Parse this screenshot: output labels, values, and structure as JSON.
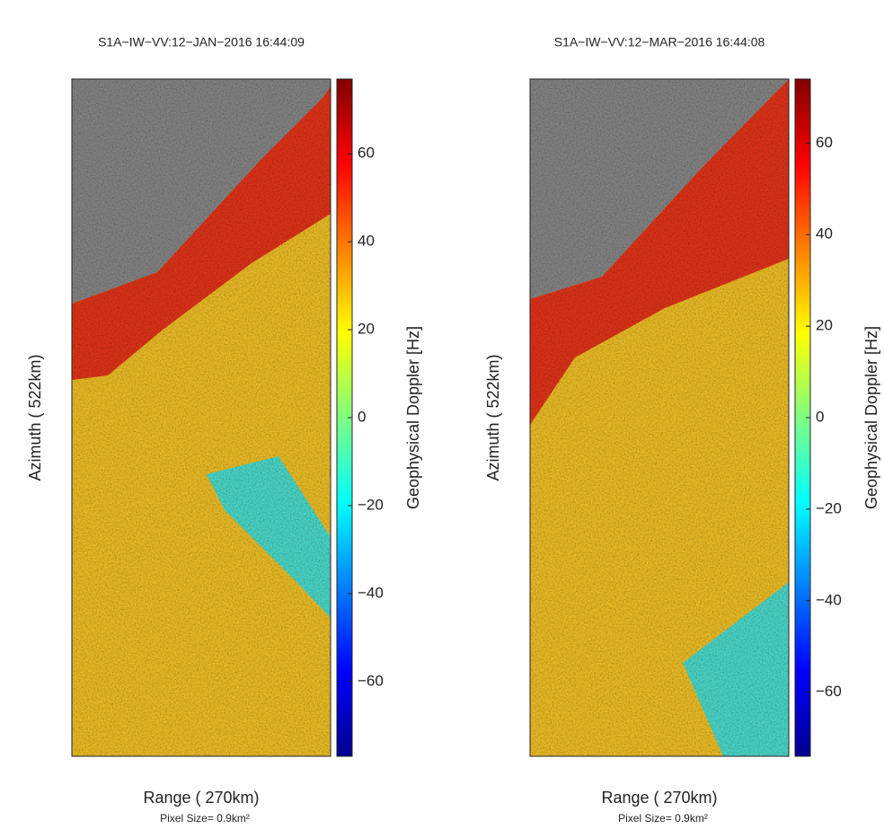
{
  "chart_data": [
    {
      "type": "image",
      "title": "S1A−IW−VV:12−JAN−2016 16:44:09",
      "xlabel": "Range ( 270km)",
      "annotation": "Pixel Size= 0.9km²",
      "ylabel": "Azimuth ( 522km)",
      "colorbar": {
        "label": "Geophysical Doppler [Hz]",
        "lim": [
          -77,
          77
        ],
        "ticks": [
          60,
          40,
          20,
          0,
          {
            "value": -20,
            "label": "−20"
          },
          {
            "value": -40,
            "label": "−40"
          },
          {
            "value": -60,
            "label": "−60"
          }
        ]
      }
    },
    {
      "type": "image",
      "title": "S1A−IW−VV:12−MAR−2016 16:44:08",
      "xlabel": "Range ( 270km)",
      "annotation": "Pixel Size= 0.9km²",
      "ylabel": "Azimuth ( 522km)",
      "colorbar": {
        "label": "Geophysical Doppler [Hz]",
        "lim": [
          -74,
          74
        ],
        "ticks": [
          60,
          40,
          20,
          0,
          {
            "value": -20,
            "label": "−20"
          },
          {
            "value": -40,
            "label": "−40"
          },
          {
            "value": -60,
            "label": "−60"
          }
        ]
      }
    }
  ]
}
